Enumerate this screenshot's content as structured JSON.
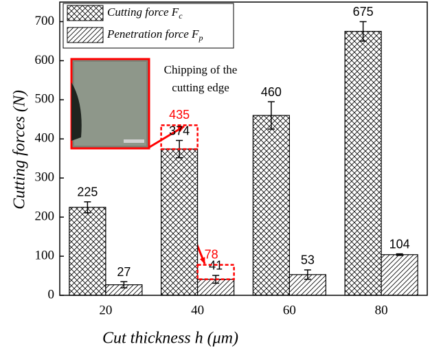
{
  "chart_data": {
    "type": "bar",
    "x_label": "Cut thickness h (μm)",
    "y_label": "Cutting forces (N)",
    "categories": [
      "20",
      "40",
      "60",
      "80"
    ],
    "series": [
      {
        "name": "Cutting force F",
        "name_subscript": "c",
        "color": "#000000",
        "pattern": "crosshatch",
        "values": [
          225,
          374,
          460,
          675
        ],
        "errors": [
          14,
          22,
          35,
          25
        ],
        "highlight_values": [
          null,
          435,
          null,
          null
        ]
      },
      {
        "name": "Penetration force F",
        "name_subscript": "p",
        "color": "#000000",
        "pattern": "hatch",
        "values": [
          27,
          41,
          53,
          104
        ],
        "errors": [
          8,
          10,
          12,
          2
        ],
        "highlight_values": [
          null,
          78,
          null,
          null
        ]
      }
    ],
    "highlight_color": "#ff0000",
    "inset_caption": [
      "Chipping of the",
      "cutting edge"
    ],
    "ylim": [
      0,
      750
    ],
    "yticks": [
      0,
      100,
      200,
      300,
      400,
      500,
      600,
      700
    ],
    "legend": "upper left"
  }
}
